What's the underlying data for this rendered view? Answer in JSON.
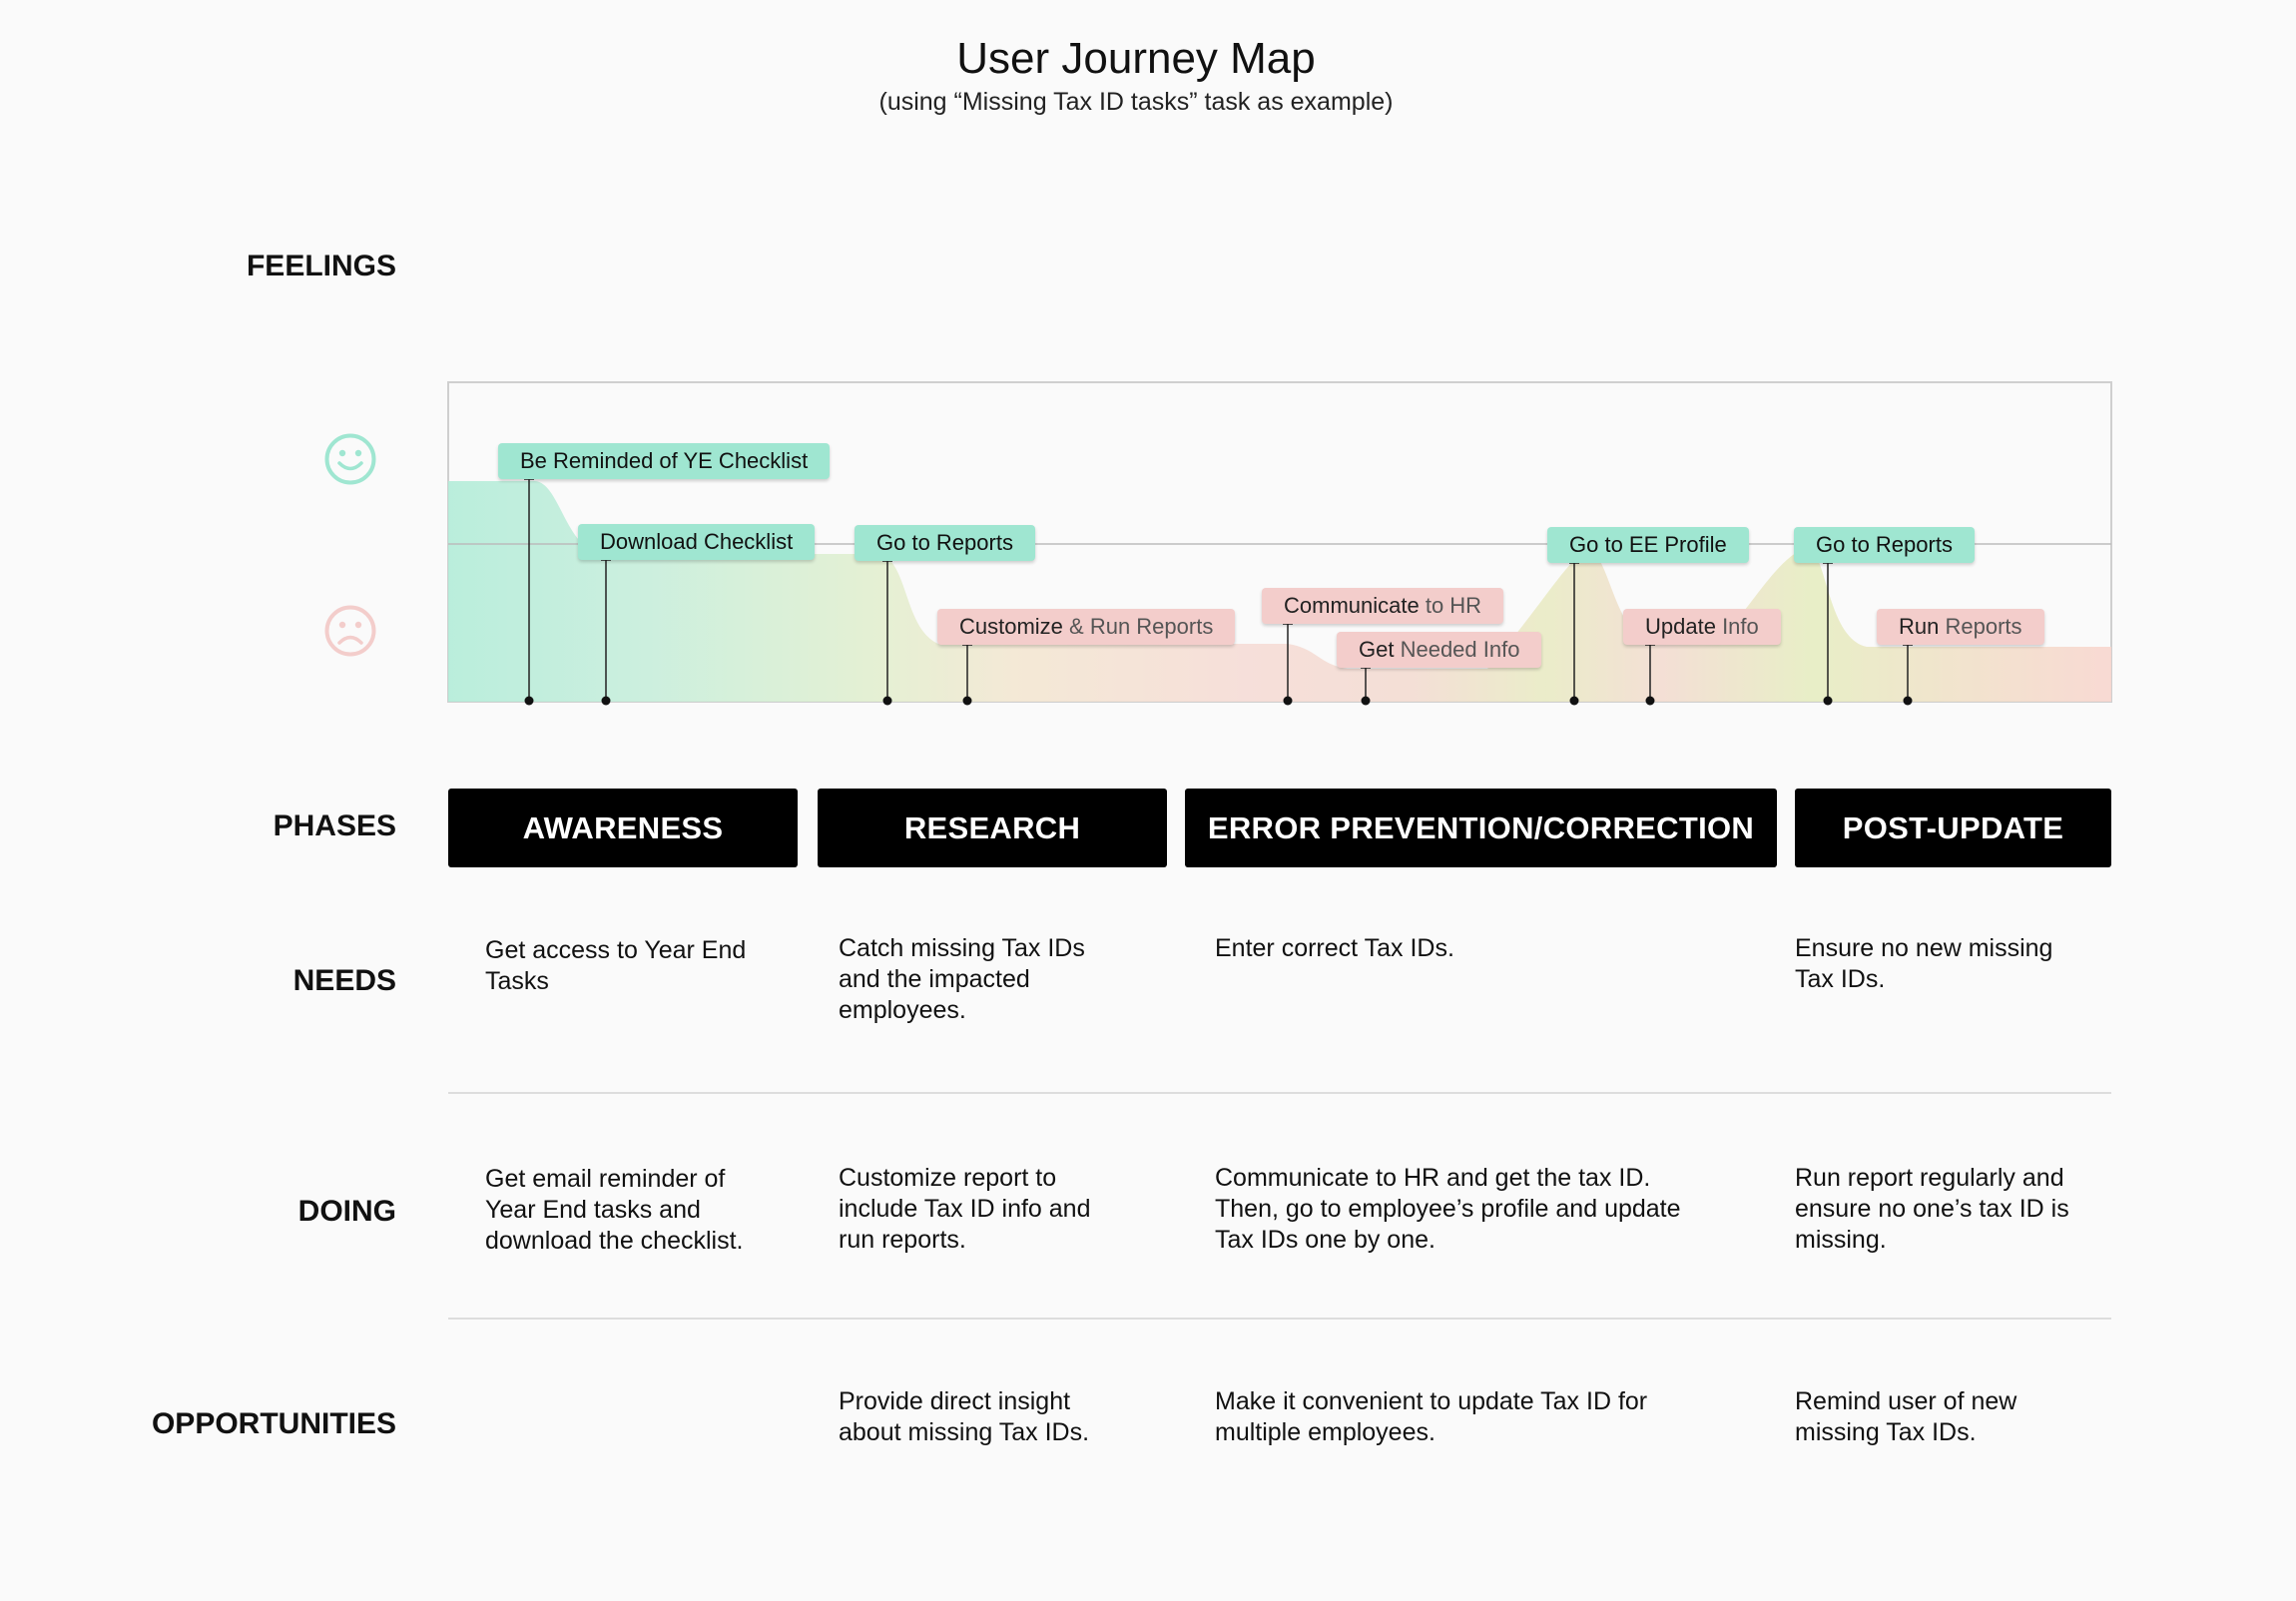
{
  "header": {
    "title": "User Journey Map",
    "subtitle": "(using “Missing Tax ID tasks” task as example)"
  },
  "row_labels": {
    "feelings": "FEELINGS",
    "phases": "PHASES",
    "needs": "NEEDS",
    "doing": "DOING",
    "opportunities": "OPPORTUNITIES"
  },
  "faces": {
    "happy": "smiley-face-icon",
    "sad": "sad-face-icon"
  },
  "colors": {
    "positive": "#9fe6d1",
    "negative": "#f3cdcb",
    "happy_face": "#9fe6d1",
    "sad_face": "#f3cdcb",
    "phase_bg": "#000000"
  },
  "steps": [
    {
      "main": "Be Reminded of YE Checklist",
      "muted": "",
      "sentiment": "positive"
    },
    {
      "main": "Download Checklist",
      "muted": "",
      "sentiment": "positive"
    },
    {
      "main": "Go to Reports",
      "muted": "",
      "sentiment": "positive"
    },
    {
      "main": "Customize",
      "muted": " & Run Reports",
      "sentiment": "negative"
    },
    {
      "main": "Communicate",
      "muted": " to HR",
      "sentiment": "negative"
    },
    {
      "main": "Get",
      "muted": " Needed Info",
      "sentiment": "negative"
    },
    {
      "main": "Go to EE Profile",
      "muted": "",
      "sentiment": "positive"
    },
    {
      "main": "Update",
      "muted": " Info",
      "sentiment": "negative"
    },
    {
      "main": "Go to Reports",
      "muted": "",
      "sentiment": "positive"
    },
    {
      "main": "Run",
      "muted": " Reports",
      "sentiment": "negative"
    }
  ],
  "phases": [
    "AWARENESS",
    "RESEARCH",
    "ERROR PREVENTION/CORRECTION",
    "POST-UPDATE"
  ],
  "needs": [
    "Get access to Year End\nTasks",
    "Catch missing Tax IDs\nand  the impacted\nemployees.",
    "Enter correct Tax IDs.",
    "Ensure no new missing\nTax IDs."
  ],
  "doing": [
    "Get email reminder of\nYear End tasks and\ndownload the checklist.",
    "Customize report to\ninclude Tax ID info and\nrun reports.",
    "Communicate to HR and get the tax ID.\nThen, go to employee’s profile and update\nTax IDs one by one.",
    "Run report regularly and\nensure no one’s tax ID is\nmissing."
  ],
  "opportunities": [
    "",
    "Provide direct insight\nabout missing Tax IDs.",
    "Make it convenient to update Tax ID for\nmultiple employees.",
    "Remind user of new\nmissing Tax IDs."
  ]
}
